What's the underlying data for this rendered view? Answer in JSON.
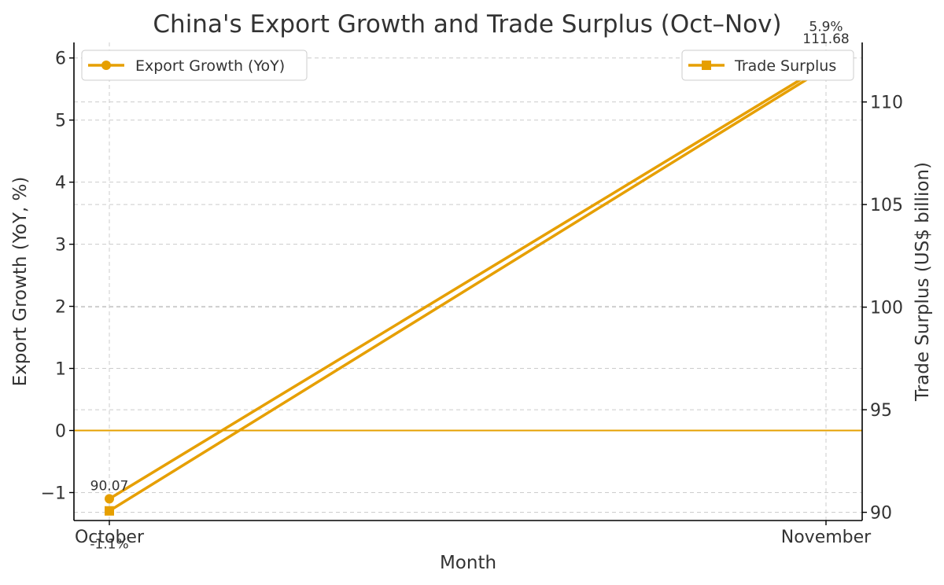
{
  "chart_data": {
    "type": "line",
    "title": "China's Export Growth and Trade Surplus (Oct–Nov)",
    "xlabel": "Month",
    "ylabel_left": "Export Growth (YoY, %)",
    "ylabel_right": "Trade Surplus (US$ billion)",
    "categories": [
      "October",
      "November"
    ],
    "ylim_left": [
      -1.45,
      6.25
    ],
    "ylim_right": [
      89.6,
      112.9
    ],
    "yticks_left": [
      "−1",
      "0",
      "1",
      "2",
      "3",
      "4",
      "5",
      "6"
    ],
    "yticks_right": [
      "90",
      "95",
      "100",
      "105",
      "110"
    ],
    "grid": true,
    "zero_line": true,
    "series": [
      {
        "name": "Export Growth (YoY)",
        "axis": "left",
        "marker": "circle",
        "values": [
          -1.1,
          5.9
        ],
        "labels": [
          "-1.1%",
          "5.9%"
        ],
        "legend_position": "top-left"
      },
      {
        "name": "Trade Surplus",
        "axis": "right",
        "marker": "square",
        "values": [
          90.07,
          111.68
        ],
        "labels": [
          "90.07",
          "111.68"
        ],
        "legend_position": "top-right"
      }
    ],
    "colors": {
      "line": "#E69F00",
      "zero_line": "#E6A000",
      "grid": "#cccccc",
      "axis": "#000000"
    }
  }
}
